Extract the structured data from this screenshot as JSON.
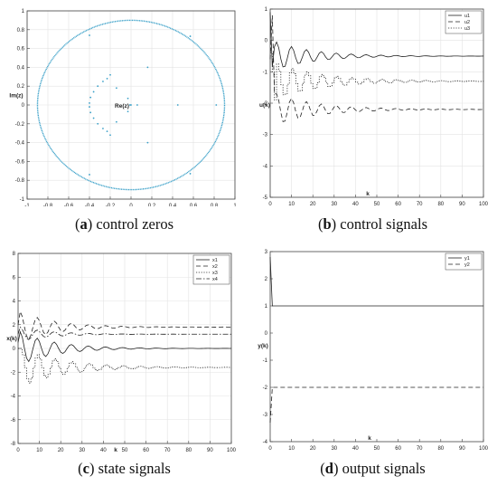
{
  "colors": {
    "axis": "#444444",
    "grid": "#e3e3e3",
    "zero_marker": "#3aa0c8",
    "series": "#222222"
  },
  "chart_data": [
    {
      "id": "a",
      "type": "scatter",
      "caption_letter": "a",
      "caption_text": "control zeros",
      "xlabel": "Re(z)",
      "ylabel": "Im(z)",
      "xlim": [
        -1,
        1
      ],
      "ylim": [
        -1,
        1
      ],
      "xticks": [
        -1,
        -0.8,
        -0.6,
        -0.4,
        -0.2,
        0,
        0.2,
        0.4,
        0.6,
        0.8,
        1
      ],
      "yticks": [
        -1,
        -0.8,
        -0.6,
        -0.4,
        -0.2,
        0,
        0.2,
        0.4,
        0.6,
        0.8,
        1
      ],
      "grid": true,
      "circle_radius": 0.9,
      "points": [
        [
          -0.4,
          0.74
        ],
        [
          -0.4,
          -0.74
        ],
        [
          0.57,
          0.73
        ],
        [
          0.57,
          -0.73
        ],
        [
          -0.2,
          0.32
        ],
        [
          -0.2,
          -0.32
        ],
        [
          -0.23,
          0.28
        ],
        [
          -0.23,
          -0.28
        ],
        [
          -0.27,
          0.25
        ],
        [
          -0.27,
          -0.25
        ],
        [
          -0.32,
          0.2
        ],
        [
          -0.32,
          -0.2
        ],
        [
          -0.36,
          0.14
        ],
        [
          -0.36,
          -0.14
        ],
        [
          -0.39,
          0.08
        ],
        [
          -0.39,
          -0.08
        ],
        [
          -0.4,
          0.02
        ],
        [
          -0.4,
          -0.02
        ],
        [
          -0.14,
          0.18
        ],
        [
          -0.14,
          -0.18
        ],
        [
          0.16,
          0.4
        ],
        [
          0.16,
          -0.4
        ],
        [
          -0.03,
          0.07
        ],
        [
          -0.03,
          -0.07
        ],
        [
          -0.01,
          0
        ],
        [
          0.0,
          0.0
        ],
        [
          0.06,
          0
        ],
        [
          0.45,
          0
        ],
        [
          0.82,
          0
        ]
      ]
    },
    {
      "id": "b",
      "type": "line",
      "caption_letter": "b",
      "caption_text": "control signals",
      "xlabel": "k",
      "ylabel": "u(k)",
      "xlim": [
        0,
        100
      ],
      "ylim": [
        -5,
        1
      ],
      "xticks": [
        0,
        10,
        20,
        30,
        40,
        50,
        60,
        70,
        80,
        90,
        100
      ],
      "yticks": [
        -5,
        -4,
        -3,
        -2,
        -1,
        0,
        1
      ],
      "grid": true,
      "legend": [
        "u1",
        "u2",
        "u3"
      ],
      "series": [
        {
          "name": "u1",
          "style": "solid",
          "initial": [
            0.9,
            -0.85,
            -0.2
          ],
          "final": -0.5,
          "amp": 0.45,
          "period": 7,
          "decay": 0.055,
          "staircase": false
        },
        {
          "name": "u2",
          "style": "dashed",
          "initial": [
            -0.6,
            0.8,
            -1.7
          ],
          "final": -2.2,
          "amp": 0.5,
          "period": 7,
          "decay": 0.05,
          "staircase": false
        },
        {
          "name": "u3",
          "style": "dotted",
          "initial": [
            -0.4,
            -1.0,
            -1.9
          ],
          "final": -1.3,
          "amp": 0.55,
          "period": 7,
          "decay": 0.045,
          "staircase": true
        }
      ]
    },
    {
      "id": "c",
      "type": "line",
      "caption_letter": "c",
      "caption_text": "state signals",
      "xlabel": "k",
      "ylabel": "x(k)",
      "xlim": [
        0,
        100
      ],
      "ylim": [
        -8,
        8
      ],
      "xticks": [
        0,
        10,
        20,
        30,
        40,
        50,
        60,
        70,
        80,
        90,
        100
      ],
      "yticks": [
        -8,
        -6,
        -4,
        -2,
        0,
        2,
        4,
        6,
        8
      ],
      "grid": true,
      "legend": [
        "x1",
        "x2",
        "x3",
        "x4"
      ],
      "series": [
        {
          "name": "x1",
          "style": "solid",
          "initial": [
            0.5
          ],
          "final": 0.0,
          "amp": 1.4,
          "period": 8,
          "decay": 0.06,
          "staircase": false
        },
        {
          "name": "x2",
          "style": "dashed",
          "initial": [
            2.0
          ],
          "final": 1.8,
          "amp": 1.3,
          "period": 8,
          "decay": 0.06,
          "staircase": false
        },
        {
          "name": "x3",
          "style": "dotted",
          "initial": [
            0.0
          ],
          "final": -1.6,
          "amp": 1.6,
          "period": 8,
          "decay": 0.05,
          "staircase": true
        },
        {
          "name": "x4",
          "style": "dashdot",
          "initial": [
            1.2
          ],
          "final": 1.2,
          "amp": 0.6,
          "period": 8,
          "decay": 0.07,
          "staircase": false
        }
      ]
    },
    {
      "id": "d",
      "type": "line",
      "caption_letter": "d",
      "caption_text": "output signals",
      "xlabel": "k",
      "ylabel": "y(k)",
      "xlim": [
        0,
        100
      ],
      "ylim": [
        -4,
        3
      ],
      "xticks": [
        0,
        10,
        20,
        30,
        40,
        50,
        60,
        70,
        80,
        90,
        100
      ],
      "yticks": [
        -4,
        -3,
        -2,
        -1,
        0,
        1,
        2,
        3
      ],
      "grid": false,
      "legend": [
        "y1",
        "y2"
      ],
      "series": [
        {
          "name": "y1",
          "style": "solid",
          "initial": [
            2.8
          ],
          "final": 1.0,
          "amp": 0,
          "period": 8,
          "decay": 1,
          "staircase": false
        },
        {
          "name": "y2",
          "style": "dashed",
          "initial": [
            -3.3
          ],
          "final": -2.0,
          "amp": 0,
          "period": 8,
          "decay": 1,
          "staircase": false
        }
      ]
    }
  ]
}
